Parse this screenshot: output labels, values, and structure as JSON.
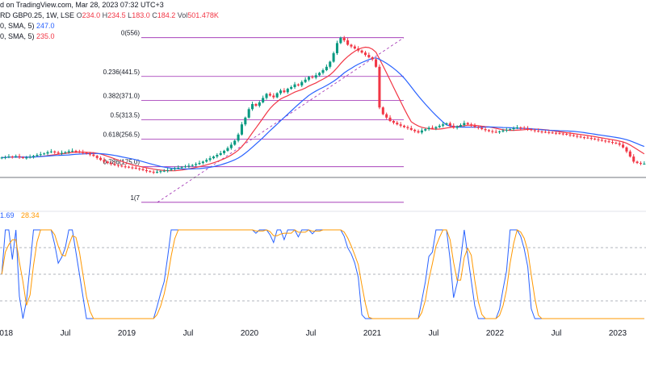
{
  "header": {
    "published_text": "d on TradingView.com, Mar 28, 2023 07:32 UTC+3",
    "symbol_text": "RD GBP0.25, 1W, LSE",
    "ohlc": {
      "open_label": "O",
      "open": "234.0",
      "high_label": "H",
      "high": "234.5",
      "low_label": "L",
      "low": "183.0",
      "close_label": "C",
      "close": "184.2",
      "vol_label": "Vol",
      "vol": "501.478K"
    },
    "sma_long": {
      "label": "0, SMA, 5)",
      "value": "247.0"
    },
    "sma_short": {
      "label": "0, SMA, 5)",
      "value": "235.0"
    }
  },
  "oscillator_legend": {
    "k_value": "1.69",
    "d_value": "28.34"
  },
  "colors": {
    "up": "#089981",
    "down": "#f23645",
    "sma_long": "#2962ff",
    "sma_short": "#f23645",
    "fib": "#9c27b0",
    "osc_k": "#2962ff",
    "osc_d": "#ff9800",
    "grid": "#d1d4dc"
  },
  "chart_data": [
    {
      "type": "candlestick",
      "x_tick_labels": [
        "2018",
        "Jul",
        "2019",
        "Jul",
        "2020",
        "Jul",
        "2021",
        "Jul",
        "2022",
        "Jul",
        "2023"
      ],
      "close": [
        202,
        203,
        205,
        204,
        206,
        203,
        201,
        202,
        204,
        207,
        210,
        212,
        214,
        218,
        220,
        217,
        214,
        216,
        218,
        221,
        222,
        220,
        218,
        216,
        214,
        211,
        207,
        201,
        195,
        190,
        186,
        183,
        180,
        178,
        176,
        175,
        173,
        172,
        170,
        168,
        165,
        162,
        160,
        158,
        160,
        162,
        163,
        165,
        168,
        170,
        172,
        174,
        176,
        178,
        180,
        183,
        186,
        190,
        195,
        200,
        205,
        210,
        215,
        222,
        230,
        240,
        252,
        270,
        300,
        320,
        345,
        360,
        355,
        365,
        378,
        390,
        385,
        380,
        392,
        400,
        395,
        405,
        410,
        418,
        415,
        425,
        432,
        440,
        438,
        445,
        452,
        460,
        470,
        485,
        510,
        540,
        556,
        548,
        535,
        530,
        524,
        518,
        512,
        505,
        498,
        492,
        470,
        350,
        330,
        320,
        310,
        305,
        300,
        296,
        292,
        289,
        284,
        280,
        276,
        282,
        286,
        290,
        288,
        292,
        296,
        300,
        303,
        296,
        290,
        294,
        298,
        304,
        300,
        296,
        292,
        290,
        286,
        283,
        280,
        278,
        277,
        279,
        282,
        284,
        286,
        289,
        291,
        290,
        288,
        286,
        283,
        281,
        279,
        278,
        277,
        276,
        275,
        274,
        273,
        272,
        270,
        268,
        266,
        264,
        262,
        261,
        260,
        258,
        256,
        254,
        252,
        250,
        248,
        246,
        244,
        240,
        232,
        220,
        205,
        190,
        186,
        184,
        184
      ],
      "fib_levels": [
        {
          "ratio_label": "0",
          "price_label": "(556)",
          "price": 556
        },
        {
          "ratio_label": "0.236",
          "price_label": "(441.5)",
          "price": 441.5
        },
        {
          "ratio_label": "0.382",
          "price_label": "(371.0)",
          "price": 371.0
        },
        {
          "ratio_label": "0.5",
          "price_label": "(313.5)",
          "price": 313.5
        },
        {
          "ratio_label": "0.618",
          "price_label": "(256.5)",
          "price": 256.5
        },
        {
          "ratio_label": "0.786",
          "price_label": "(175.0)",
          "price": 175.0
        },
        {
          "ratio_label": "1",
          "price_label": "(7",
          "price": 70
        }
      ],
      "oscillator": {
        "levels": [
          80,
          50,
          20
        ]
      }
    }
  ]
}
